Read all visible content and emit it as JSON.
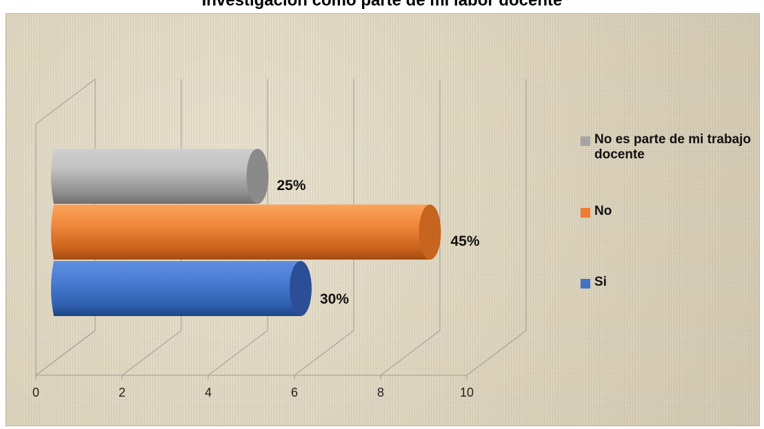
{
  "chart_data": {
    "type": "bar",
    "orientation": "horizontal",
    "style": "3d-cylinder",
    "title": "Investigación como parte de mi labor docente",
    "categories": [
      "Si",
      "No",
      "No es parte de mi trabajo docente"
    ],
    "series": [
      {
        "name": "Si",
        "value": 6,
        "label": "30%",
        "color": "#4472c4"
      },
      {
        "name": "No",
        "value": 9,
        "label": "45%",
        "color": "#ed7d31"
      },
      {
        "name": "No es parte de mi trabajo docente",
        "value": 5,
        "label": "25%",
        "color": "#a5a5a5"
      }
    ],
    "xlim": [
      0,
      10
    ],
    "xticks": [
      "0",
      "2",
      "4",
      "6",
      "8",
      "10"
    ],
    "grid": true,
    "legend_position": "right"
  },
  "legend": [
    {
      "label": "No es parte de mi trabajo docente",
      "color": "#a5a5a5"
    },
    {
      "label": "No",
      "color": "#ed7d31"
    },
    {
      "label": "Si",
      "color": "#4472c4"
    }
  ]
}
